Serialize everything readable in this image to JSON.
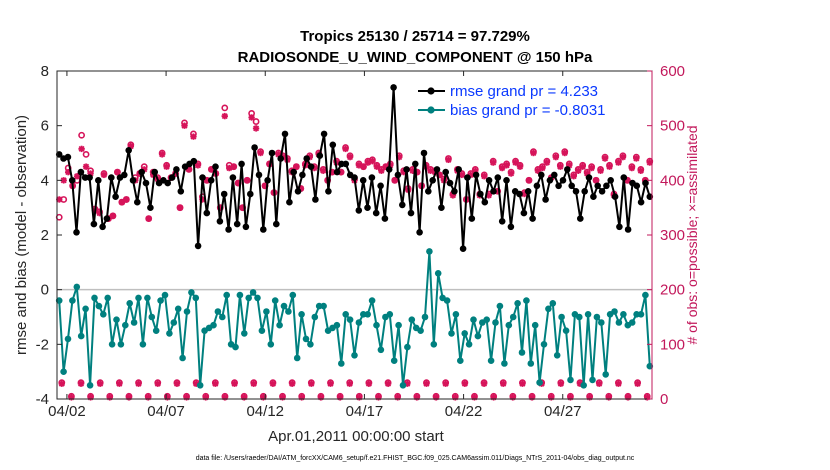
{
  "chart_data": {
    "type": "line",
    "title": "Tropics 25130 / 25714 = 97.729%",
    "subtitle": "RADIOSONDE_U_WIND_COMPONENT @ 150 hPa",
    "xlabel": "Apr.01,2011 00:00:00 start",
    "ylabel": "rmse and bias (model - observation)",
    "ylabel_right": "# of obs: o=possible; ×=assimilated",
    "footnote": "data file: /Users/raeder/DAI/ATM_forcXX/CAM6_setup/f.e21.FHIST_BGC.f09_025.CAM6assim.011/Diags_NTrS_2011-04/obs_diag_output.nc",
    "x_tick_labels": [
      "04/02",
      "04/07",
      "04/12",
      "04/17",
      "04/22",
      "04/27"
    ],
    "x_tick_days": [
      2,
      7,
      12,
      17,
      22,
      27
    ],
    "xlim": [
      1.5,
      31.5
    ],
    "ylim": [
      -4,
      8
    ],
    "y_ticks": [
      -4,
      -2,
      0,
      2,
      4,
      6,
      8
    ],
    "ylim_right": [
      0,
      600
    ],
    "y_ticks_right": [
      0,
      100,
      200,
      300,
      400,
      500,
      600
    ],
    "zero_line": 0,
    "colors": {
      "rmse": "#000000",
      "bias": "#00807f",
      "obs": "#d6145a",
      "legend_text": "#0a39ff",
      "right_axis": "#c2185b",
      "zero_line": "#bfbfbf"
    },
    "series": [
      {
        "name": "rmse grand pr = 4.233",
        "marker": "dot",
        "values": [
          4.95,
          4.8,
          4.85,
          4.0,
          2.1,
          4.3,
          4.1,
          4.1,
          2.4,
          4.0,
          2.3,
          2.6,
          4.1,
          3.4,
          4.1,
          4.2,
          5.1,
          4.0,
          3.2,
          4.3,
          3.9,
          3.0,
          4.3,
          3.9,
          4.0,
          3.9,
          4.1,
          4.4,
          3.6,
          4.5,
          4.6,
          4.7,
          1.6,
          4.1,
          2.8,
          4.0,
          4.5,
          2.5,
          3.5,
          2.2,
          4.1,
          2.4,
          4.6,
          2.3,
          3.5,
          5.2,
          4.2,
          2.2,
          4.0,
          5.0,
          2.4,
          4.8,
          5.7,
          3.2,
          4.3,
          3.6,
          4.2,
          4.8,
          4.5,
          3.3,
          4.9,
          5.7,
          3.6,
          5.3,
          4.3,
          4.6,
          4.6,
          4.2,
          4.1,
          2.9,
          4.0,
          3.0,
          4.1,
          2.8,
          3.8,
          2.6,
          4.4,
          7.4,
          4.2,
          3.1,
          4.4,
          2.8,
          4.6,
          2.1,
          5.0,
          3.6,
          4.0,
          4.4,
          3.0,
          4.3,
          3.9,
          3.6,
          4.4,
          1.5,
          4.1,
          2.6,
          4.2,
          3.5,
          3.2,
          4.0,
          3.6,
          4.1,
          2.5,
          4.0,
          2.3,
          3.6,
          3.5,
          2.8,
          3.6,
          2.6,
          3.8,
          4.2,
          3.3,
          4.0,
          4.2,
          3.8,
          4.0,
          4.4,
          3.8,
          3.6,
          2.6,
          3.6,
          4.1,
          3.4,
          3.8,
          3.6,
          3.8,
          4.0,
          3.4,
          2.3,
          4.1,
          2.2,
          3.9,
          3.8,
          3.2,
          3.9,
          3.4
        ]
      },
      {
        "name": "bias grand pr = -0.8031",
        "marker": "dot",
        "values": [
          -0.4,
          -3.0,
          -1.8,
          -0.4,
          0.1,
          -1.7,
          -0.7,
          -3.5,
          -0.3,
          -0.6,
          -0.9,
          -0.3,
          -2.0,
          -1.1,
          -2.0,
          -1.3,
          -0.5,
          -1.2,
          -0.3,
          -2.0,
          -0.3,
          -1.0,
          -1.5,
          -0.4,
          -0.2,
          -1.6,
          -1.2,
          -0.7,
          -2.5,
          -0.8,
          -0.1,
          -0.3,
          -3.5,
          -1.5,
          -1.4,
          -1.3,
          -0.8,
          -1.0,
          -0.2,
          -2.0,
          -2.1,
          -0.2,
          -1.6,
          -0.3,
          -0.1,
          -0.3,
          -1.5,
          -0.8,
          -2.0,
          -0.4,
          -1.3,
          -0.6,
          -0.8,
          -0.2,
          -2.5,
          -0.9,
          -1.8,
          -2.0,
          -1.0,
          -0.6,
          -0.6,
          -1.5,
          -1.4,
          -1.3,
          -2.7,
          -0.9,
          -1.1,
          -2.4,
          -1.2,
          -0.9,
          -0.9,
          -0.4,
          -1.3,
          -2.2,
          -1.0,
          -0.9,
          -2.6,
          -1.3,
          -3.5,
          -2.1,
          -1.1,
          -1.4,
          -1.5,
          -1.0,
          1.4,
          -2.0,
          0.6,
          -0.3,
          -0.4,
          -1.6,
          -0.9,
          -2.6,
          -1.6,
          -2.0,
          -1.1,
          -1.7,
          -1.2,
          -1.1,
          -2.6,
          -1.2,
          -0.6,
          -2.7,
          -1.3,
          -1.0,
          -0.5,
          -2.3,
          -0.4,
          -2.7,
          -1.3,
          -3.4,
          -2.0,
          -0.7,
          -0.5,
          -2.4,
          -1.0,
          -1.5,
          -3.3,
          -0.9,
          -1.0,
          -3.5,
          -0.9,
          -3.3,
          -1.0,
          -1.2,
          -3.1,
          -0.9,
          -0.8,
          -1.2,
          -0.9,
          -1.3,
          -1.2,
          -0.9,
          -0.9,
          -0.2,
          -2.8
        ]
      }
    ],
    "obs_possible_left_units": [
      2.65,
      3.3,
      4.45,
      3.8,
      4.0,
      5.65,
      4.95,
      4.35,
      2.95,
      2.85,
      4.25,
      2.6,
      2.7,
      4.3,
      3.2,
      3.3,
      5.3,
      4.1,
      4.25,
      4.5,
      2.6,
      4.3,
      4.1,
      5.0,
      4.55,
      4.1,
      4.25,
      3.0,
      6.1,
      4.4,
      5.7,
      4.6,
      3.4,
      4.0,
      4.4,
      4.25,
      3.0,
      6.65,
      4.55,
      4.5,
      3.9,
      3.0,
      4.0,
      6.45,
      6.15,
      5.05,
      3.8,
      4.6,
      3.55,
      5.0,
      4.9,
      4.8,
      4.35,
      4.5,
      3.7,
      4.6,
      4.9,
      4.5,
      5.0,
      4.4,
      4.0,
      4.3,
      4.7,
      4.3,
      5.2,
      4.9,
      4.05,
      4.6,
      4.5,
      4.7,
      4.75,
      4.55,
      4.4,
      4.5,
      4.6,
      4.0,
      4.9,
      4.35,
      3.7,
      4.4,
      4.3,
      3.8,
      4.55,
      4.4,
      4.35,
      4.2,
      4.05,
      4.8,
      3.5,
      4.4,
      4.25,
      3.3,
      4.25,
      4.4,
      3.5,
      4.2,
      3.5,
      4.7,
      3.6,
      4.5,
      4.6,
      4.3,
      4.7,
      4.55,
      3.55,
      4.0,
      5.05,
      4.4,
      4.5,
      4.7,
      4.1,
      4.9,
      4.55,
      5.05,
      4.6,
      4.2,
      4.4,
      4.55,
      4.3,
      4.5,
      4.0,
      4.4,
      4.85,
      4.55,
      3.5,
      4.7,
      4.9,
      4.0,
      4.5,
      4.85,
      4.4,
      4.0,
      4.7
    ],
    "obs_assimilated_left_units": [
      3.3,
      4.0,
      4.3,
      3.8,
      4.15,
      5.15,
      4.5,
      4.25,
      2.9,
      2.8,
      4.2,
      2.6,
      2.7,
      4.3,
      3.2,
      3.3,
      5.25,
      4.0,
      4.25,
      4.4,
      2.6,
      4.2,
      4.05,
      4.95,
      4.5,
      4.1,
      4.25,
      3.0,
      6.0,
      4.4,
      5.6,
      4.55,
      3.3,
      4.0,
      4.4,
      4.25,
      3.0,
      6.35,
      4.45,
      4.5,
      3.9,
      3.0,
      4.0,
      6.3,
      5.9,
      5.0,
      3.8,
      4.6,
      3.55,
      4.95,
      4.85,
      4.75,
      4.3,
      4.5,
      3.7,
      4.55,
      4.85,
      4.45,
      4.95,
      4.35,
      4.0,
      4.3,
      4.65,
      4.3,
      5.15,
      4.85,
      4.0,
      4.55,
      4.5,
      4.65,
      4.7,
      4.5,
      4.35,
      4.5,
      4.55,
      4.0,
      4.85,
      4.3,
      3.65,
      4.35,
      4.3,
      3.8,
      4.5,
      4.35,
      4.3,
      4.2,
      4.0,
      4.75,
      3.45,
      4.35,
      4.2,
      3.3,
      4.2,
      4.35,
      3.45,
      4.15,
      3.45,
      4.65,
      3.6,
      4.45,
      4.55,
      4.25,
      4.65,
      4.5,
      3.5,
      4.0,
      5.0,
      4.35,
      4.45,
      4.65,
      4.1,
      4.85,
      4.5,
      5.0,
      4.55,
      4.15,
      4.35,
      4.5,
      4.25,
      4.45,
      4.0,
      4.35,
      4.8,
      4.5,
      3.45,
      4.65,
      4.85,
      4.0,
      4.45,
      4.8,
      4.35,
      4.0,
      4.65
    ],
    "obs_bottom_possible": [
      30,
      5,
      30,
      5,
      30,
      5,
      30,
      5,
      30,
      5,
      30,
      5,
      30,
      5,
      30,
      5,
      30,
      5,
      30,
      5,
      30,
      5,
      30,
      5,
      30,
      5,
      30,
      5,
      30,
      5,
      30,
      5,
      30,
      5,
      30,
      5,
      30,
      5,
      30,
      5,
      30,
      5,
      30,
      5,
      30,
      5,
      30,
      5,
      30,
      5,
      30,
      5,
      30,
      5,
      30,
      5,
      30,
      5,
      30,
      5,
      30,
      5
    ],
    "obs_bottom_assimilated": [
      28,
      3,
      28,
      3,
      28,
      3,
      28,
      3,
      28,
      3,
      28,
      3,
      28,
      3,
      28,
      3,
      28,
      3,
      28,
      3,
      28,
      3,
      28,
      3,
      28,
      3,
      28,
      3,
      28,
      3,
      28,
      3,
      28,
      3,
      28,
      3,
      28,
      3,
      28,
      3,
      28,
      3,
      28,
      3,
      28,
      3,
      28,
      3,
      28,
      3,
      28,
      3,
      28,
      3,
      28,
      3,
      28,
      3,
      28,
      3,
      28,
      3
    ]
  }
}
